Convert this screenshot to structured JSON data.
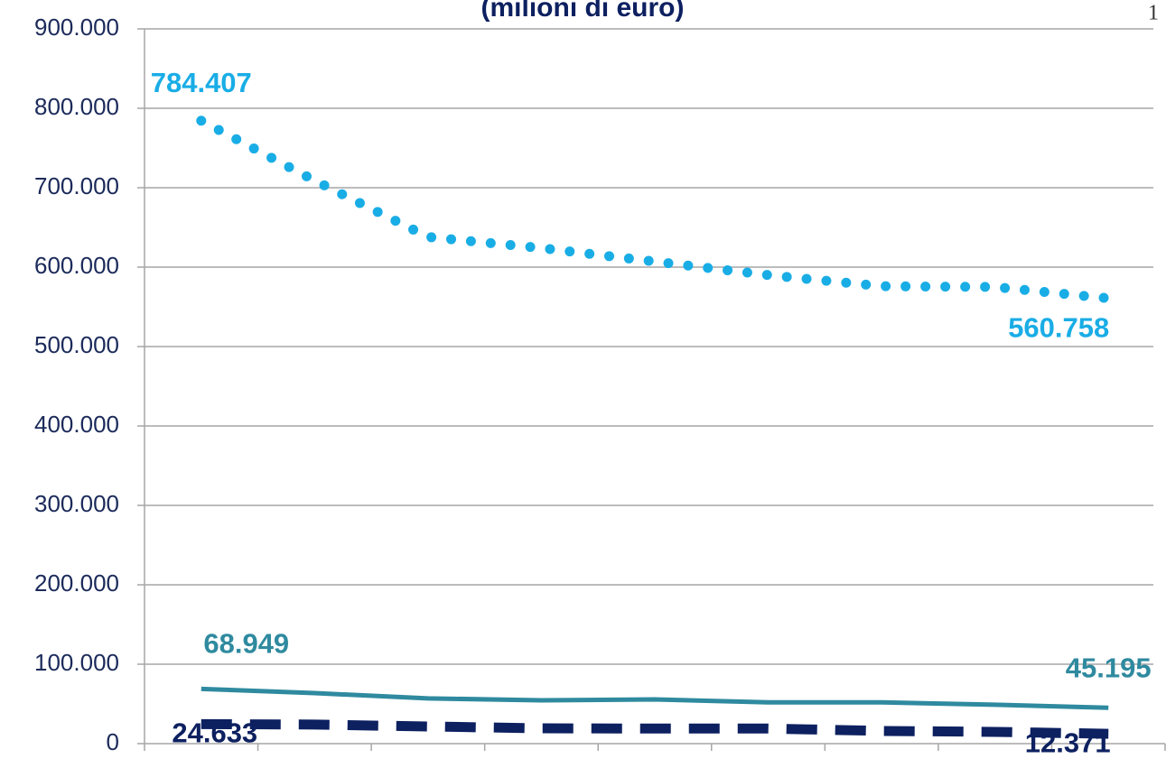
{
  "chart_data": {
    "type": "line",
    "title": "(milioni di euro)",
    "page_number": "1",
    "categories": [
      null,
      null,
      null,
      null,
      null,
      null,
      null,
      null,
      null
    ],
    "series": [
      {
        "color": "#19ade6",
        "style": "dotted",
        "values": [
          784407,
          709000,
          638000,
          624000,
          607000,
          590000,
          576000,
          575000,
          560758
        ],
        "value_labels": [
          "784.407",
          null,
          null,
          null,
          null,
          null,
          null,
          null,
          "560.758"
        ]
      },
      {
        "color": "#2f8a9f",
        "style": "solid",
        "values": [
          68949,
          63600,
          57000,
          54500,
          55700,
          52000,
          52000,
          49000,
          45195
        ],
        "value_labels": [
          "68.949",
          null,
          null,
          null,
          null,
          null,
          null,
          null,
          "45.195"
        ]
      },
      {
        "color": "#0d2060",
        "style": "dashed",
        "values": [
          24633,
          24000,
          21600,
          19300,
          19000,
          19000,
          16000,
          14800,
          12371
        ],
        "value_labels": [
          "24.633",
          null,
          null,
          null,
          null,
          null,
          null,
          null,
          "12.371"
        ]
      }
    ],
    "ylim": [
      0,
      900000
    ],
    "yticks": [
      {
        "value": 0,
        "label": "0"
      },
      {
        "value": 100000,
        "label": "100.000"
      },
      {
        "value": 200000,
        "label": "200.000"
      },
      {
        "value": 300000,
        "label": "300.000"
      },
      {
        "value": 400000,
        "label": "400.000"
      },
      {
        "value": 500000,
        "label": "500.000"
      },
      {
        "value": 600000,
        "label": "600.000"
      },
      {
        "value": 700000,
        "label": "700.000"
      },
      {
        "value": 800000,
        "label": "800.000"
      },
      {
        "value": 900000,
        "label": "900.000"
      }
    ],
    "grid": true
  }
}
